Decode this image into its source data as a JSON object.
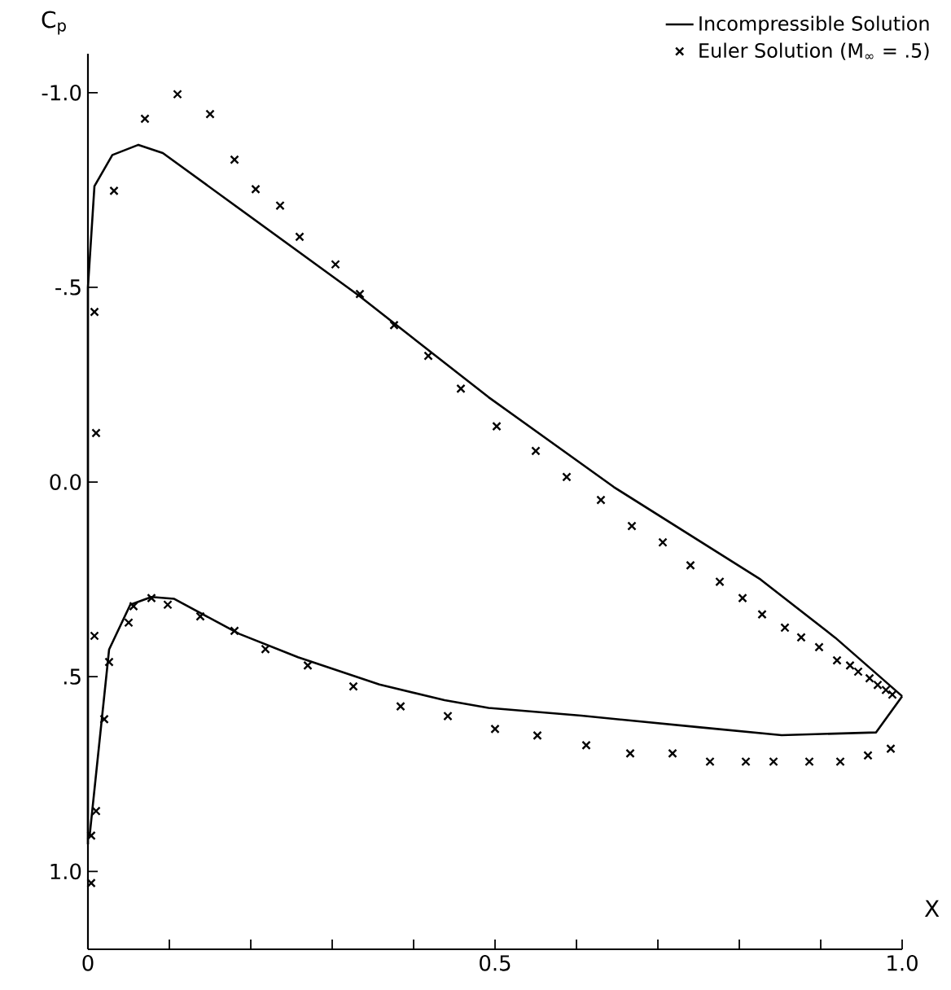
{
  "chart_data": {
    "type": "line",
    "xlabel": "X",
    "ylabel": "C$_{p}$",
    "xlim": [
      0,
      1.0
    ],
    "ylim": [
      1.2,
      -1.1
    ],
    "xticks": [
      {
        "value": 0,
        "label": "0"
      },
      {
        "value": 0.1,
        "label": null
      },
      {
        "value": 0.2,
        "label": null
      },
      {
        "value": 0.3,
        "label": null
      },
      {
        "value": 0.4,
        "label": null
      },
      {
        "value": 0.5,
        "label": "0.5"
      },
      {
        "value": 0.6,
        "label": null
      },
      {
        "value": 0.7,
        "label": null
      },
      {
        "value": 0.8,
        "label": null
      },
      {
        "value": 0.9,
        "label": null
      },
      {
        "value": 1.0,
        "label": "1.0"
      }
    ],
    "yticks": [
      {
        "value": -1.0,
        "label": "-1.0"
      },
      {
        "value": -0.5,
        "label": "-.5"
      },
      {
        "value": 0.0,
        "label": "0.0"
      },
      {
        "value": 0.5,
        "label": ".5"
      },
      {
        "value": 1.0,
        "label": "1.0"
      }
    ],
    "legend": "top right",
    "series": [
      {
        "name": "Incompressible Solution",
        "type": "line",
        "color": "#000000",
        "marker": "none",
        "line_style": "solid",
        "x": [
          0.0,
          0.0,
          0.008,
          0.03,
          0.062,
          0.092,
          0.332,
          0.492,
          0.646,
          0.826,
          0.918,
          1.0
        ],
        "values": [
          0.93,
          -0.5,
          -0.76,
          -0.84,
          -0.866,
          -0.845,
          -0.48,
          -0.218,
          0.013,
          0.25,
          0.4,
          0.55
        ]
      },
      {
        "type": "line",
        "color": "#000000",
        "marker": "none",
        "line_style": "solid",
        "x": [
          0.002,
          0.026,
          0.052,
          0.078,
          0.106,
          0.186,
          0.258,
          0.358,
          0.438,
          0.492,
          0.606,
          0.752,
          0.852,
          0.968,
          1.0
        ],
        "values": [
          0.91,
          0.43,
          0.315,
          0.295,
          0.3,
          0.39,
          0.45,
          0.52,
          0.56,
          0.58,
          0.6,
          0.63,
          0.65,
          0.643,
          0.55
        ]
      },
      {
        "name": "Euler Solution (M$_{∞}$ = .5)",
        "type": "scatter",
        "color": "#000000",
        "marker": "cross",
        "x": [
          0.01,
          0.008,
          0.032,
          0.07,
          0.11,
          0.15,
          0.18,
          0.206,
          0.236,
          0.26,
          0.304,
          0.334,
          0.376,
          0.418,
          0.458,
          0.502,
          0.55,
          0.588,
          0.63,
          0.668,
          0.706,
          0.74,
          0.776,
          0.804,
          0.828,
          0.856,
          0.876,
          0.898,
          0.92,
          0.936,
          0.946,
          0.96,
          0.97,
          0.98,
          0.988,
          0.986,
          0.958,
          0.924,
          0.886,
          0.842,
          0.808,
          0.764,
          0.718,
          0.666,
          0.612,
          0.552,
          0.5,
          0.442,
          0.384,
          0.326,
          0.27,
          0.218,
          0.18,
          0.138,
          0.098,
          0.078,
          0.056,
          0.05,
          0.026,
          0.02,
          0.01,
          0.004,
          0.004,
          0.008
        ],
        "values": [
          -0.126,
          -0.437,
          -0.748,
          -0.933,
          -0.996,
          -0.945,
          -0.828,
          -0.752,
          -0.71,
          -0.63,
          -0.559,
          -0.483,
          -0.403,
          -0.324,
          -0.24,
          -0.143,
          -0.08,
          -0.013,
          0.046,
          0.113,
          0.155,
          0.214,
          0.256,
          0.298,
          0.34,
          0.374,
          0.399,
          0.424,
          0.458,
          0.471,
          0.487,
          0.504,
          0.521,
          0.534,
          0.546,
          0.685,
          0.702,
          0.718,
          0.718,
          0.718,
          0.718,
          0.718,
          0.697,
          0.697,
          0.676,
          0.651,
          0.634,
          0.601,
          0.576,
          0.525,
          0.471,
          0.429,
          0.382,
          0.345,
          0.315,
          0.298,
          0.319,
          0.361,
          0.462,
          0.609,
          0.845,
          0.908,
          1.03,
          0.395
        ]
      }
    ]
  }
}
